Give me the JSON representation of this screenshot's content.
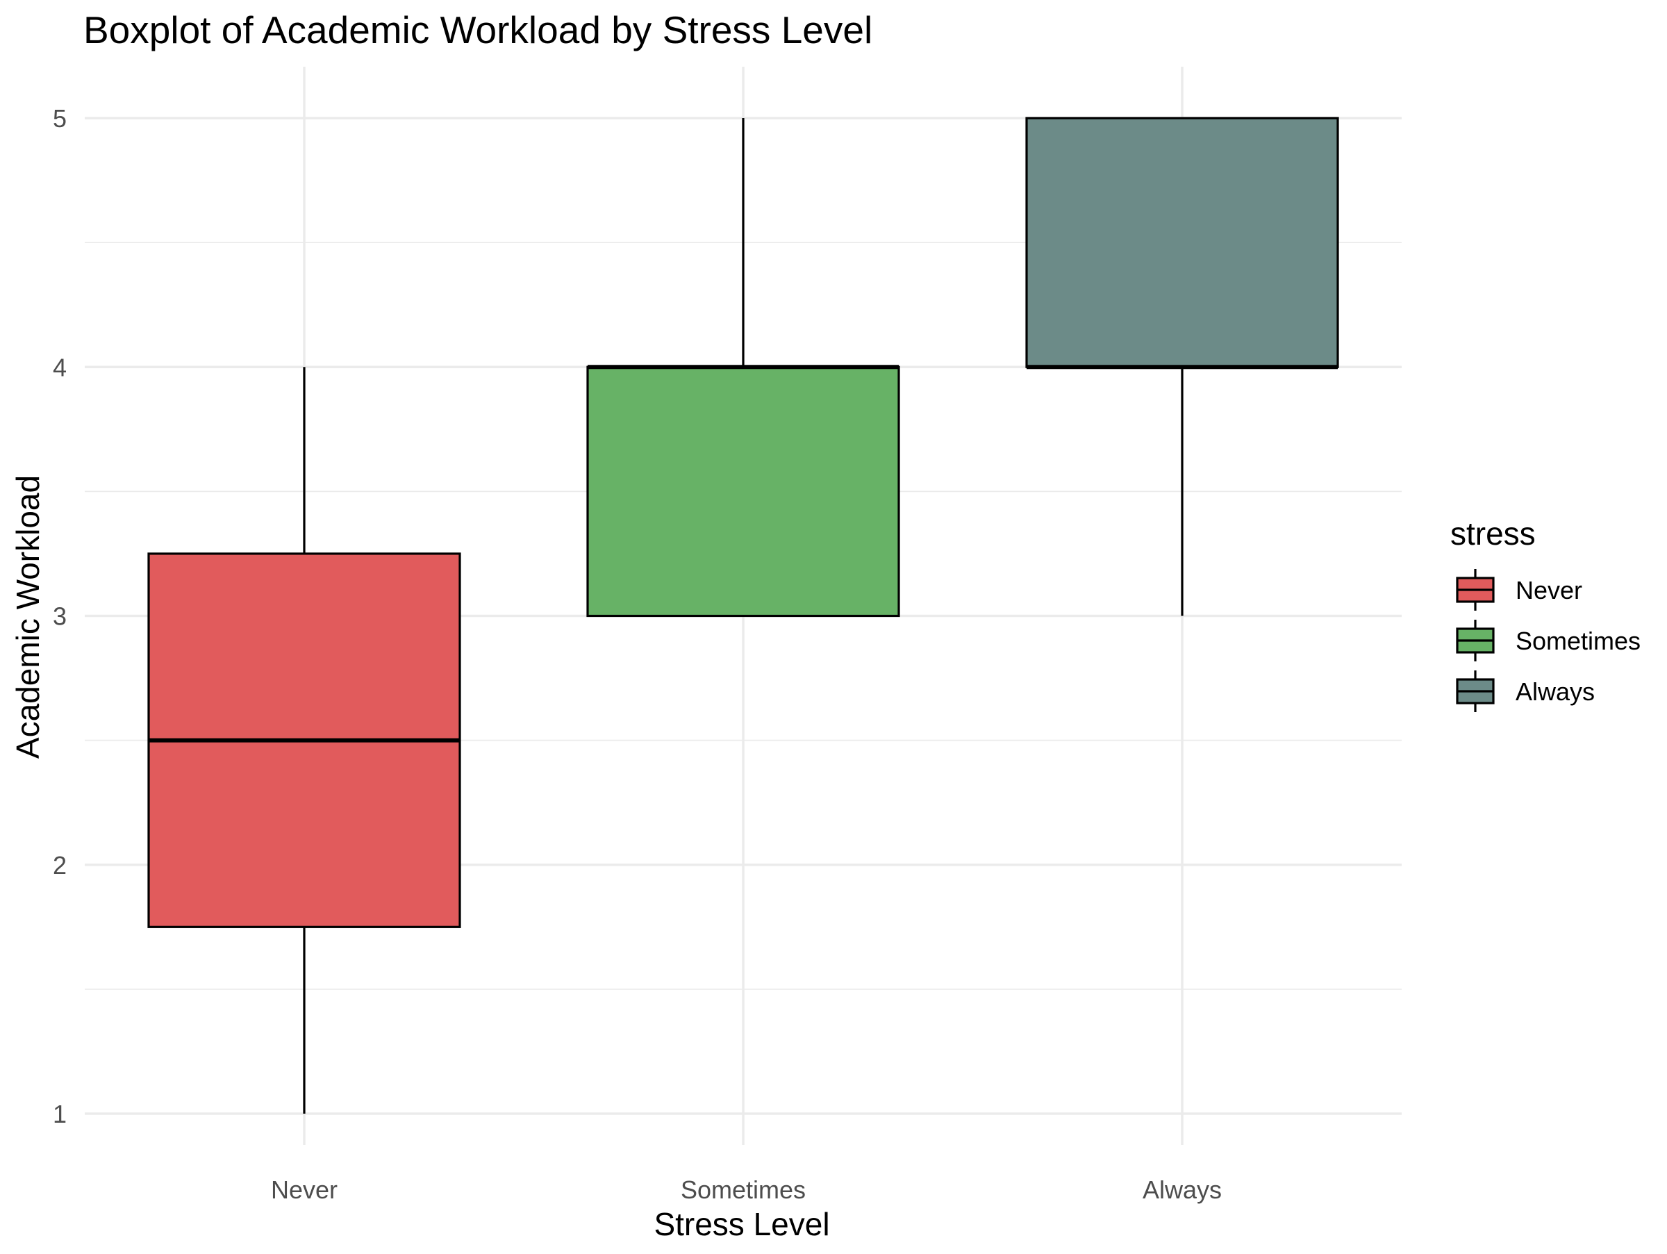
{
  "chart_data": {
    "type": "boxplot",
    "title": "Boxplot of Academic Workload by Stress Level",
    "xlabel": "Stress Level",
    "ylabel": "Academic Workload",
    "categories": [
      "Never",
      "Sometimes",
      "Always"
    ],
    "boxes": [
      {
        "category": "Never",
        "min": 1,
        "q1": 1.75,
        "median": 2.5,
        "q3": 3.25,
        "max": 4,
        "color": "#E15B5C"
      },
      {
        "category": "Sometimes",
        "min": 3,
        "q1": 3,
        "median": 4,
        "q3": 4,
        "max": 5,
        "color": "#67B266"
      },
      {
        "category": "Always",
        "min": 3,
        "q1": 4,
        "median": 4,
        "q3": 5,
        "max": 5,
        "color": "#6C8B88"
      }
    ],
    "ylim": [
      0.85,
      5.2
    ],
    "yticks": [
      1,
      2,
      3,
      4,
      5
    ],
    "grid": true,
    "legend": {
      "title": "stress",
      "position": "right",
      "entries": [
        "Never",
        "Sometimes",
        "Always"
      ]
    }
  }
}
